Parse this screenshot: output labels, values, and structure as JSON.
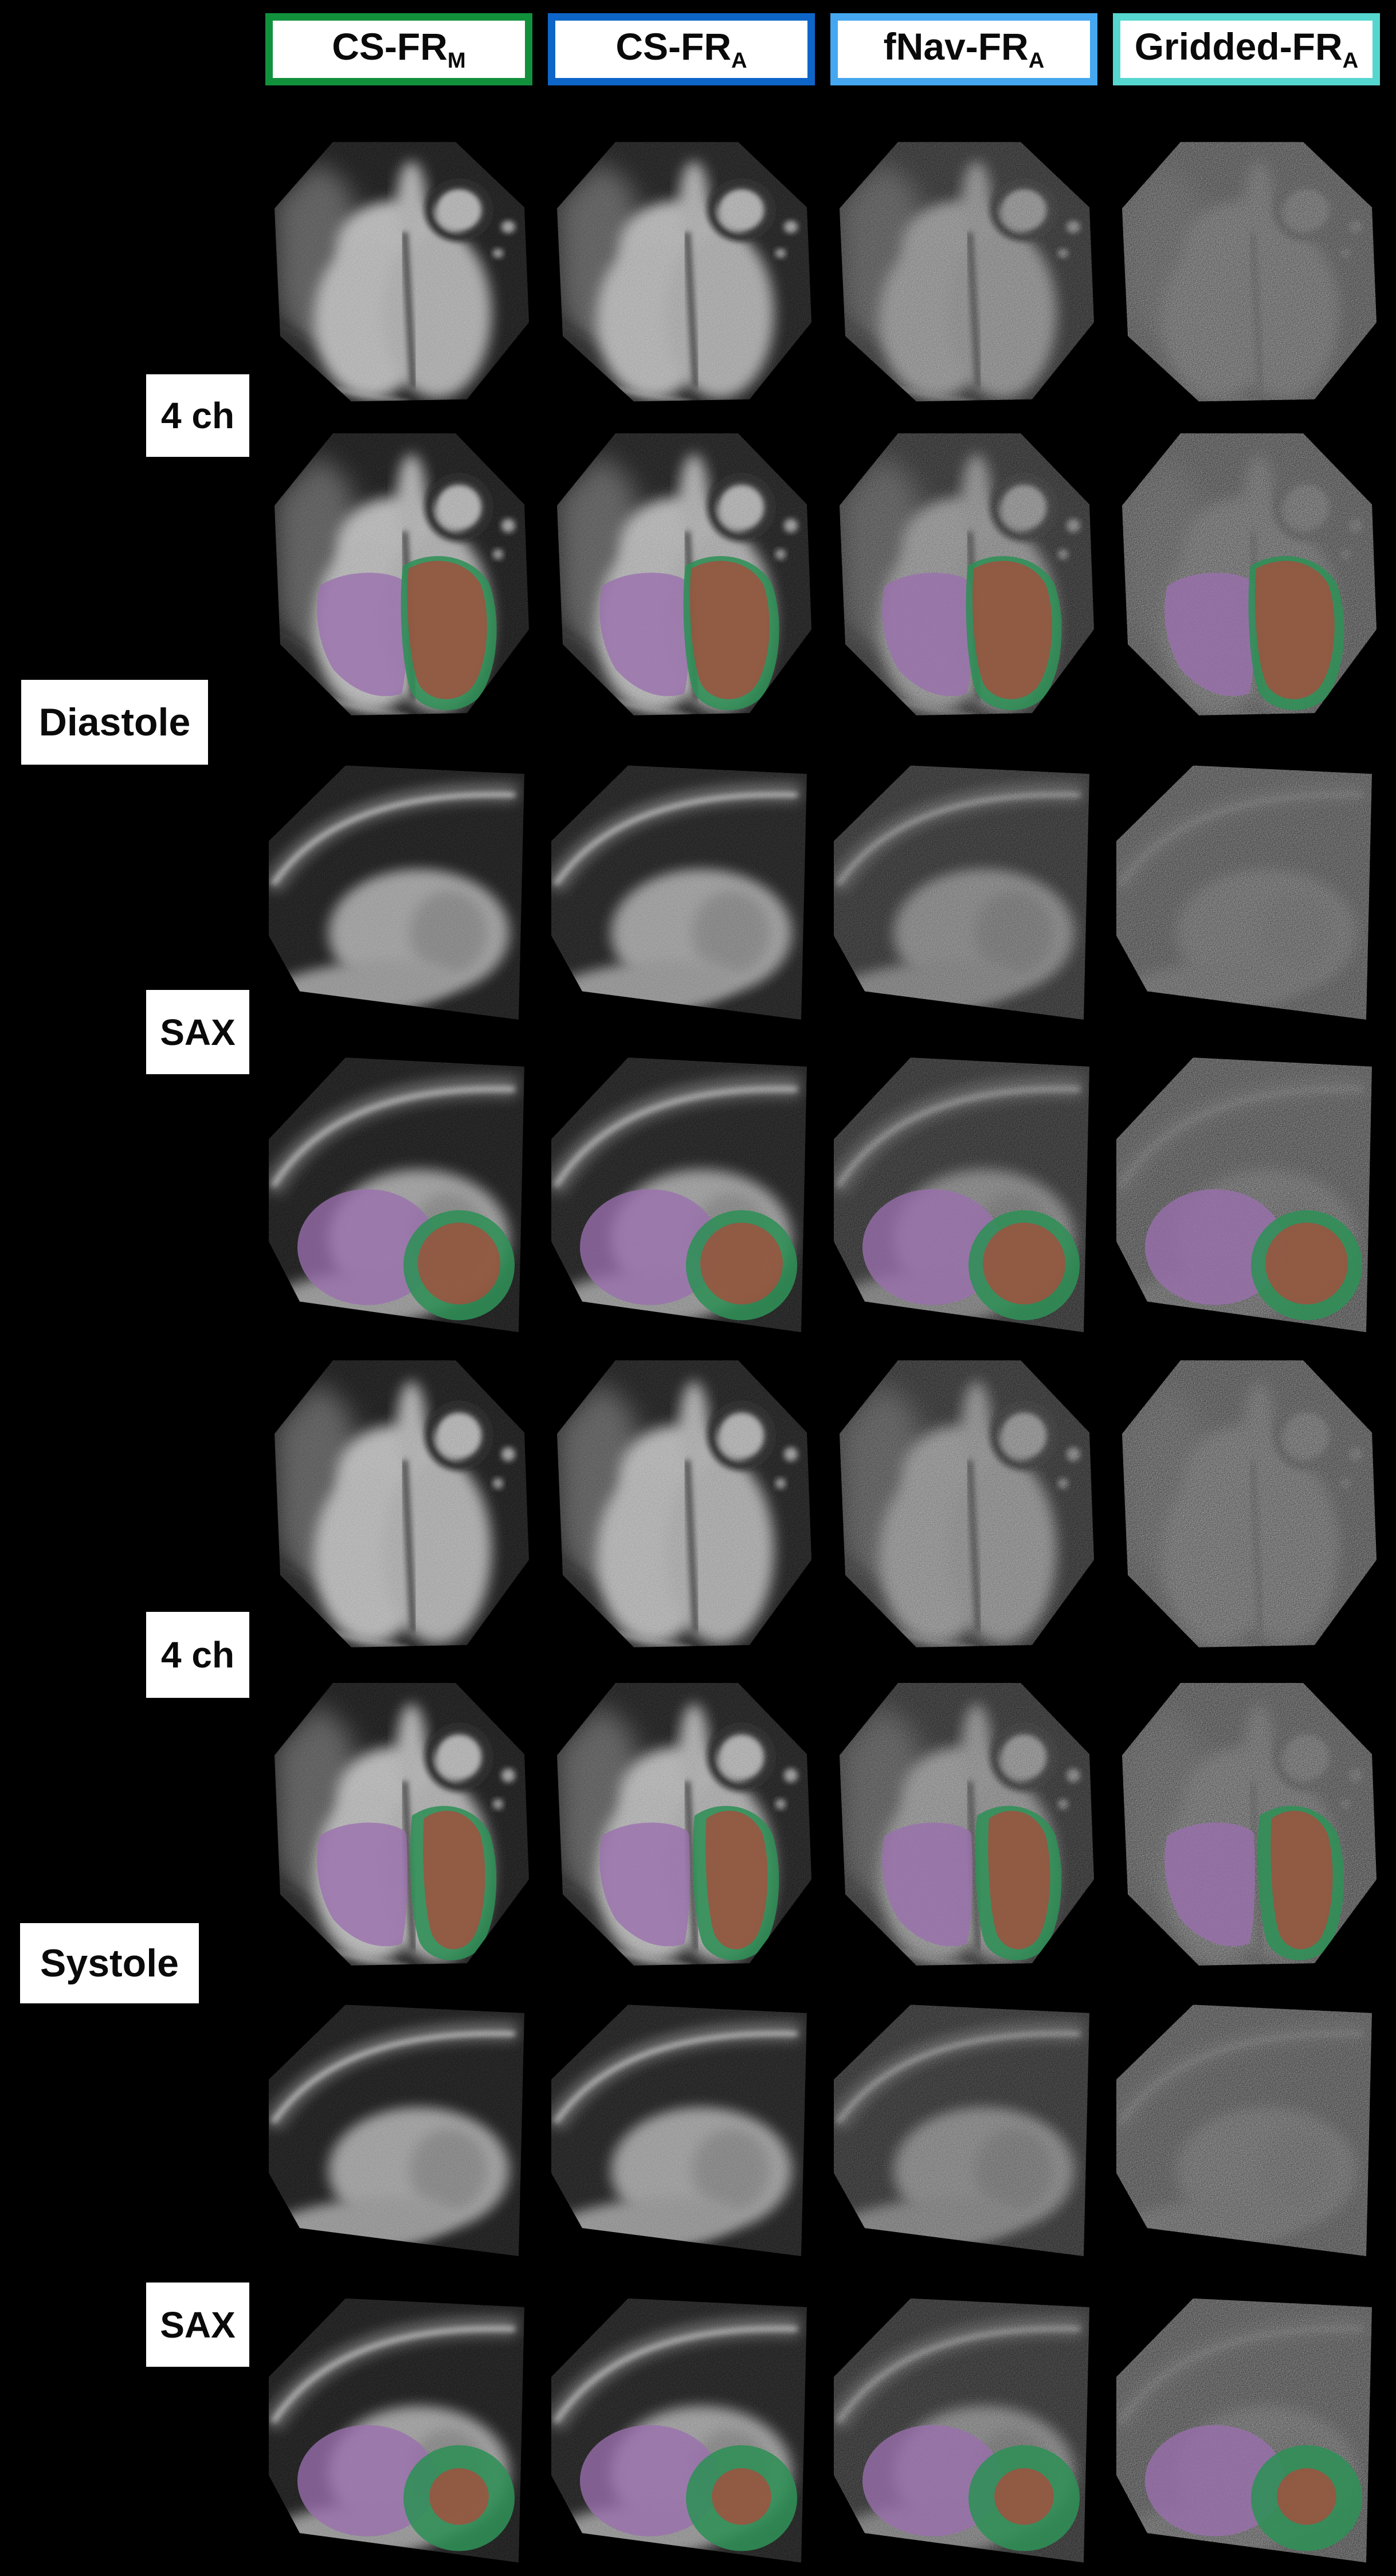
{
  "page": {
    "background": "#000000"
  },
  "column_headers": [
    {
      "label": "CS-FR",
      "subscript": "M",
      "border_color": "#12913d"
    },
    {
      "label": "CS-FR",
      "subscript": "A",
      "border_color": "#0e65c8"
    },
    {
      "label": "fNav-FR",
      "subscript": "A",
      "border_color": "#45a7ef"
    },
    {
      "label": "Gridded-FR",
      "subscript": "A",
      "border_color": "#55d6cf"
    }
  ],
  "row_labels": [
    {
      "text": "4 ch"
    },
    {
      "text": "Diastole"
    },
    {
      "text": "SAX"
    },
    {
      "text": "4 ch"
    },
    {
      "text": "Systole"
    },
    {
      "text": "SAX"
    }
  ],
  "grid": {
    "columns": [
      "CS-FR_M",
      "CS-FR_A",
      "fNav-FR_A",
      "Gridded-FR_A"
    ],
    "rows": [
      {
        "view": "4ch",
        "phase": "diastole",
        "segmented": false
      },
      {
        "view": "4ch",
        "phase": "diastole",
        "segmented": true
      },
      {
        "view": "sax",
        "phase": "diastole",
        "segmented": false
      },
      {
        "view": "sax",
        "phase": "diastole",
        "segmented": true
      },
      {
        "view": "4ch",
        "phase": "systole",
        "segmented": false
      },
      {
        "view": "4ch",
        "phase": "systole",
        "segmented": true
      },
      {
        "view": "sax",
        "phase": "systole",
        "segmented": false
      },
      {
        "view": "sax",
        "phase": "systole",
        "segmented": true
      }
    ]
  },
  "overlay_colors": {
    "purple": "#9a6fae",
    "red": "#a94b3c",
    "green": "#2f8f57"
  }
}
